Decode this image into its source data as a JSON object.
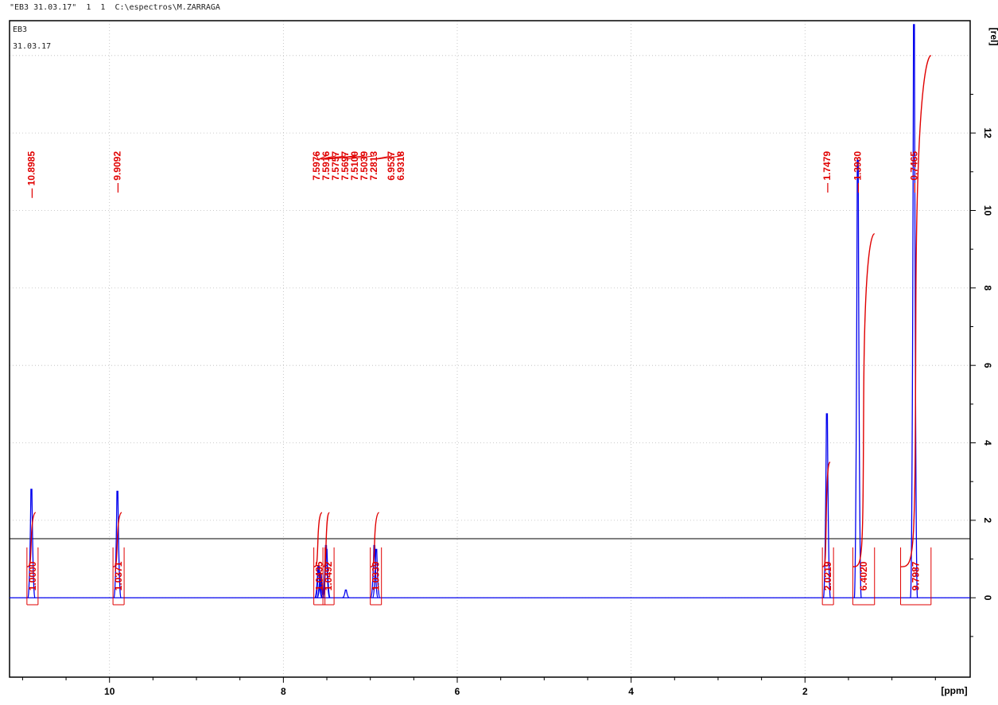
{
  "header": {
    "title_line": "\"EB3 31.03.17\"  1  1  C:\\espectros\\M.ZARRAGA",
    "sample": "EB3",
    "date": "31.03.17"
  },
  "chart_data": {
    "type": "line",
    "xlabel": "[ppm]",
    "ylabel": "[rel]",
    "xlim": [
      11.15,
      0.1
    ],
    "ylim": [
      -2.05,
      14.9
    ],
    "x_ticks": [
      10,
      8,
      6,
      4,
      2
    ],
    "y_ticks": [
      0,
      2,
      4,
      6,
      8,
      10,
      12
    ],
    "grid": true,
    "colors": {
      "spectrum": "#0000ee",
      "annotation": "#e00000",
      "grid": "#bbbbbb"
    },
    "peaks": [
      {
        "ppm": 10.8985,
        "height": 2.8,
        "label": "10.8985"
      },
      {
        "ppm": 9.9092,
        "height": 2.75,
        "label": "9.9092"
      },
      {
        "ppm": 7.5976,
        "height": 0.8,
        "label": "7.5976"
      },
      {
        "ppm": 7.5916,
        "height": 0.82,
        "label": "7.5916"
      },
      {
        "ppm": 7.5757,
        "height": 0.55,
        "label": "7.5757"
      },
      {
        "ppm": 7.5697,
        "height": 0.6,
        "label": "7.5697"
      },
      {
        "ppm": 7.51,
        "height": 1.35,
        "label": "7.5100"
      },
      {
        "ppm": 7.5039,
        "height": 1.25,
        "label": "7.5039"
      },
      {
        "ppm": 7.2813,
        "height": 0.2,
        "label": "7.2813"
      },
      {
        "ppm": 6.9537,
        "height": 1.35,
        "label": "6.9537"
      },
      {
        "ppm": 6.9318,
        "height": 1.25,
        "label": "6.9318"
      },
      {
        "ppm": 1.7479,
        "height": 4.75,
        "label": "1.7479"
      },
      {
        "ppm": 1.393,
        "height": 11.3,
        "label": "1.3930"
      },
      {
        "ppm": 0.7465,
        "height": 14.8,
        "label": "0.7465"
      }
    ],
    "integrals": [
      {
        "from": 10.95,
        "to": 10.85,
        "value": "1.0000",
        "y_start": 0.8,
        "y_end": 2.2
      },
      {
        "from": 9.96,
        "to": 9.86,
        "value": "1.0371",
        "y_start": 0.8,
        "y_end": 2.2
      },
      {
        "from": 7.65,
        "to": 7.555,
        "value": "1.0435",
        "y_start": 0.8,
        "y_end": 2.2
      },
      {
        "from": 7.545,
        "to": 7.47,
        "value": "1.0492",
        "y_start": 0.8,
        "y_end": 2.2
      },
      {
        "from": 7.0,
        "to": 6.9,
        "value": "1.0339",
        "y_start": 0.8,
        "y_end": 2.2
      },
      {
        "from": 1.8,
        "to": 1.71,
        "value": "2.0219",
        "y_start": 0.8,
        "y_end": 3.5
      },
      {
        "from": 1.45,
        "to": 1.2,
        "value": "6.4020",
        "y_start": 0.8,
        "y_end": 9.4
      },
      {
        "from": 0.9,
        "to": 0.55,
        "value": "9.7987",
        "y_start": 0.8,
        "y_end": 14.0
      }
    ]
  }
}
